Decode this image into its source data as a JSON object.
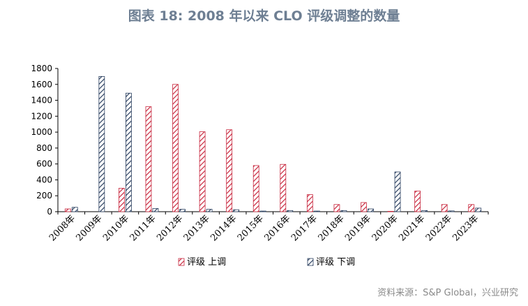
{
  "title": "图表 18: 2008 年以来 CLO 评级调整的数量",
  "source": "资料来源：S&P Global，兴业研究",
  "colors": {
    "up": "#c8283e",
    "down": "#2a3f5f",
    "axis": "#000000",
    "title": "#6e7f93"
  },
  "chart_data": {
    "type": "bar",
    "categories": [
      "2008年",
      "2009年",
      "2010年",
      "2011年",
      "2012年",
      "2013年",
      "2014年",
      "2015年",
      "2016年",
      "2017年",
      "2018年",
      "2019年",
      "2020年",
      "2021年",
      "2022年",
      "2023年"
    ],
    "series": [
      {
        "name": "评级 上调",
        "values": [
          35,
          0,
          295,
          1320,
          1600,
          1005,
          1030,
          580,
          595,
          215,
          90,
          115,
          5,
          260,
          90,
          90
        ]
      },
      {
        "name": "评级 下调",
        "values": [
          55,
          1700,
          1490,
          40,
          30,
          30,
          25,
          8,
          15,
          8,
          15,
          35,
          500,
          15,
          10,
          45
        ]
      }
    ],
    "yticks": [
      "0",
      "200",
      "400",
      "600",
      "800",
      "1000",
      "1200",
      "1400",
      "1600",
      "1800"
    ],
    "ylim": [
      0,
      1800
    ],
    "legend_position": "bottom",
    "grid": false
  }
}
